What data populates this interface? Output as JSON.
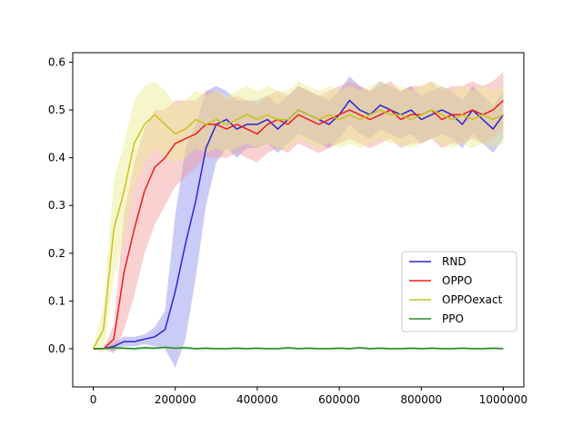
{
  "chart_data": {
    "type": "line",
    "title": "",
    "xlabel": "",
    "ylabel": "",
    "xlim": [
      -50000,
      1050000
    ],
    "ylim": [
      -0.08,
      0.62
    ],
    "xticks": [
      0,
      200000,
      400000,
      600000,
      800000,
      1000000
    ],
    "xtick_labels": [
      "0",
      "200000",
      "400000",
      "600000",
      "800000",
      "1000000"
    ],
    "yticks": [
      0.0,
      0.1,
      0.2,
      0.3,
      0.4,
      0.5,
      0.6
    ],
    "ytick_labels": [
      "0.0",
      "0.1",
      "0.2",
      "0.3",
      "0.4",
      "0.5",
      "0.6"
    ],
    "grid": false,
    "legend_position": "lower-right",
    "series": [
      {
        "name": "RND",
        "color": "#2b24d6",
        "band_color": "#8c8cf0",
        "x": [
          0,
          25000,
          50000,
          75000,
          100000,
          125000,
          150000,
          175000,
          200000,
          225000,
          250000,
          275000,
          300000,
          325000,
          350000,
          375000,
          400000,
          425000,
          450000,
          475000,
          500000,
          525000,
          550000,
          575000,
          600000,
          625000,
          650000,
          675000,
          700000,
          725000,
          750000,
          775000,
          800000,
          825000,
          850000,
          875000,
          900000,
          925000,
          950000,
          975000,
          1000000
        ],
        "y": [
          0.0,
          0.0,
          0.005,
          0.015,
          0.015,
          0.02,
          0.025,
          0.04,
          0.12,
          0.22,
          0.31,
          0.42,
          0.47,
          0.48,
          0.46,
          0.47,
          0.47,
          0.48,
          0.46,
          0.48,
          0.5,
          0.49,
          0.48,
          0.47,
          0.49,
          0.52,
          0.5,
          0.49,
          0.51,
          0.5,
          0.49,
          0.5,
          0.48,
          0.49,
          0.5,
          0.49,
          0.47,
          0.5,
          0.48,
          0.46,
          0.49
        ],
        "band": [
          0.0,
          0.0,
          0.01,
          0.01,
          0.01,
          0.01,
          0.02,
          0.04,
          0.16,
          0.2,
          0.16,
          0.12,
          0.08,
          0.06,
          0.06,
          0.05,
          0.05,
          0.05,
          0.05,
          0.05,
          0.05,
          0.05,
          0.05,
          0.05,
          0.05,
          0.05,
          0.05,
          0.05,
          0.05,
          0.05,
          0.05,
          0.05,
          0.05,
          0.05,
          0.05,
          0.05,
          0.05,
          0.05,
          0.05,
          0.05,
          0.05
        ]
      },
      {
        "name": "OPPO",
        "color": "#ee1d1d",
        "band_color": "#f59a9a",
        "x": [
          0,
          25000,
          50000,
          75000,
          100000,
          125000,
          150000,
          175000,
          200000,
          225000,
          250000,
          275000,
          300000,
          325000,
          350000,
          375000,
          400000,
          425000,
          450000,
          475000,
          500000,
          525000,
          550000,
          575000,
          600000,
          625000,
          650000,
          675000,
          700000,
          725000,
          750000,
          775000,
          800000,
          825000,
          850000,
          875000,
          900000,
          925000,
          950000,
          975000,
          1000000
        ],
        "y": [
          0.0,
          0.0,
          0.02,
          0.16,
          0.25,
          0.33,
          0.38,
          0.4,
          0.43,
          0.44,
          0.45,
          0.47,
          0.47,
          0.46,
          0.47,
          0.46,
          0.45,
          0.47,
          0.48,
          0.47,
          0.49,
          0.48,
          0.47,
          0.48,
          0.49,
          0.5,
          0.49,
          0.48,
          0.49,
          0.5,
          0.48,
          0.49,
          0.49,
          0.5,
          0.48,
          0.49,
          0.49,
          0.5,
          0.49,
          0.5,
          0.52
        ],
        "band": [
          0.0,
          0.0,
          0.03,
          0.12,
          0.14,
          0.13,
          0.12,
          0.1,
          0.09,
          0.08,
          0.07,
          0.07,
          0.07,
          0.06,
          0.06,
          0.06,
          0.06,
          0.06,
          0.06,
          0.06,
          0.06,
          0.06,
          0.06,
          0.06,
          0.06,
          0.06,
          0.06,
          0.06,
          0.06,
          0.06,
          0.06,
          0.06,
          0.06,
          0.06,
          0.06,
          0.06,
          0.06,
          0.06,
          0.06,
          0.06,
          0.06
        ]
      },
      {
        "name": "OPPOexact",
        "color": "#c6c41a",
        "band_color": "#ecec8e",
        "x": [
          0,
          25000,
          50000,
          75000,
          100000,
          125000,
          150000,
          175000,
          200000,
          225000,
          250000,
          275000,
          300000,
          325000,
          350000,
          375000,
          400000,
          425000,
          450000,
          475000,
          500000,
          525000,
          550000,
          575000,
          600000,
          625000,
          650000,
          675000,
          700000,
          725000,
          750000,
          775000,
          800000,
          825000,
          850000,
          875000,
          900000,
          925000,
          950000,
          975000,
          1000000
        ],
        "y": [
          0.0,
          0.04,
          0.25,
          0.33,
          0.43,
          0.47,
          0.49,
          0.47,
          0.45,
          0.46,
          0.48,
          0.47,
          0.48,
          0.47,
          0.48,
          0.49,
          0.48,
          0.49,
          0.48,
          0.48,
          0.5,
          0.49,
          0.48,
          0.49,
          0.48,
          0.49,
          0.48,
          0.49,
          0.5,
          0.49,
          0.49,
          0.48,
          0.49,
          0.5,
          0.49,
          0.48,
          0.49,
          0.48,
          0.49,
          0.48,
          0.49
        ],
        "band": [
          0.0,
          0.05,
          0.1,
          0.1,
          0.09,
          0.08,
          0.07,
          0.07,
          0.06,
          0.06,
          0.06,
          0.06,
          0.06,
          0.06,
          0.06,
          0.06,
          0.06,
          0.06,
          0.06,
          0.06,
          0.06,
          0.06,
          0.06,
          0.06,
          0.06,
          0.06,
          0.06,
          0.06,
          0.06,
          0.06,
          0.06,
          0.06,
          0.06,
          0.06,
          0.06,
          0.06,
          0.06,
          0.06,
          0.06,
          0.06,
          0.06
        ]
      },
      {
        "name": "PPO",
        "color": "#2a8a2a",
        "band_color": "#9fd09f",
        "x": [
          0,
          25000,
          50000,
          75000,
          100000,
          125000,
          150000,
          175000,
          200000,
          225000,
          250000,
          275000,
          300000,
          325000,
          350000,
          375000,
          400000,
          425000,
          450000,
          475000,
          500000,
          525000,
          550000,
          575000,
          600000,
          625000,
          650000,
          675000,
          700000,
          725000,
          750000,
          775000,
          800000,
          825000,
          850000,
          875000,
          900000,
          925000,
          950000,
          975000,
          1000000
        ],
        "y": [
          0.0,
          0.0,
          0.002,
          0.001,
          0.0,
          0.002,
          0.001,
          0.003,
          0.001,
          0.002,
          0.0,
          0.001,
          0.0,
          0.0,
          0.001,
          0.0,
          0.001,
          0.0,
          0.0,
          0.002,
          0.0,
          0.001,
          0.0,
          0.0,
          0.001,
          0.0,
          0.002,
          0.0,
          0.001,
          0.0,
          0.0,
          0.001,
          0.0,
          0.001,
          0.0,
          0.0,
          0.001,
          0.0,
          0.0,
          0.001,
          0.0
        ],
        "band": [
          0.0,
          0.0,
          0.003,
          0.003,
          0.003,
          0.003,
          0.003,
          0.003,
          0.003,
          0.003,
          0.003,
          0.003,
          0.003,
          0.003,
          0.003,
          0.003,
          0.003,
          0.003,
          0.003,
          0.003,
          0.003,
          0.003,
          0.003,
          0.003,
          0.003,
          0.003,
          0.003,
          0.003,
          0.003,
          0.003,
          0.003,
          0.003,
          0.003,
          0.003,
          0.003,
          0.003,
          0.003,
          0.003,
          0.003,
          0.003,
          0.003
        ]
      }
    ]
  }
}
